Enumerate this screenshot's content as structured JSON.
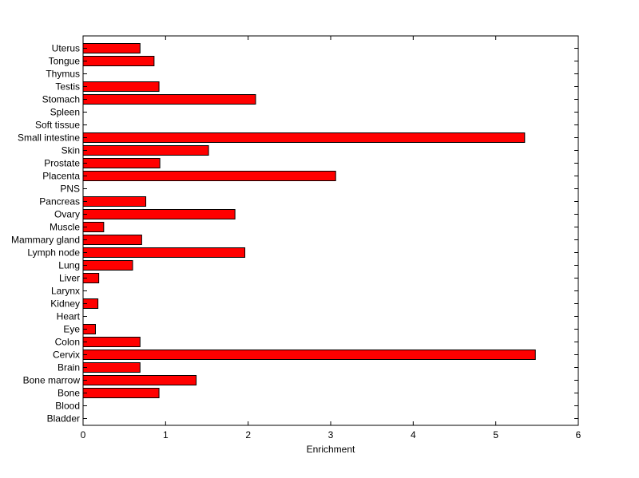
{
  "chart_data": {
    "type": "bar",
    "orientation": "horizontal",
    "title": "",
    "xlabel": "Enrichment",
    "ylabel": "",
    "xlim": [
      0,
      6
    ],
    "xticks": [
      0,
      1,
      2,
      3,
      4,
      5,
      6
    ],
    "grid": false,
    "bar_color": "#ff0000",
    "bar_edge_color": "#000000",
    "categories": [
      "Bladder",
      "Blood",
      "Bone",
      "Bone marrow",
      "Brain",
      "Cervix",
      "Colon",
      "Eye",
      "Heart",
      "Kidney",
      "Larynx",
      "Liver",
      "Lung",
      "Lymph node",
      "Mammary gland",
      "Muscle",
      "Ovary",
      "Pancreas",
      "PNS",
      "Placenta",
      "Prostate",
      "Skin",
      "Small intestine",
      "Soft tissue",
      "Spleen",
      "Stomach",
      "Testis",
      "Thymus",
      "Tongue",
      "Uterus"
    ],
    "values": [
      0,
      0,
      0.92,
      1.37,
      0.69,
      5.48,
      0.69,
      0.15,
      0,
      0.18,
      0,
      0.19,
      0.6,
      1.96,
      0.71,
      0.25,
      1.84,
      0.76,
      0,
      3.06,
      0.93,
      1.52,
      5.35,
      0,
      0,
      2.09,
      0.92,
      0,
      0.86,
      0.69
    ]
  }
}
